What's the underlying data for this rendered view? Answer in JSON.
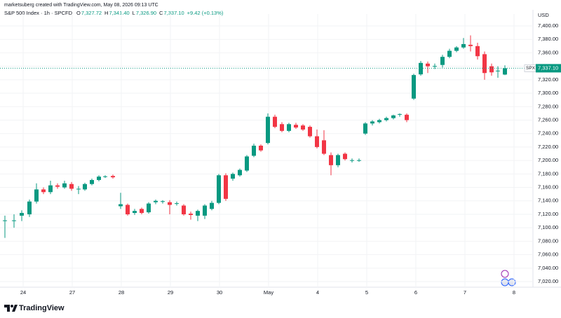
{
  "header": "marketsuberg created with TradingView.com, May 08, 2026 09:13 UTC",
  "chart_data": {
    "type": "candlestick",
    "title": "S&P 500 Index · 1h · SPCFD",
    "ohlc_legend": [
      {
        "label": "O",
        "value": "7,327.72"
      },
      {
        "label": "H",
        "value": "7,341.40"
      },
      {
        "label": "L",
        "value": "7,326.90"
      },
      {
        "label": "C",
        "value": "7,337.10"
      }
    ],
    "change": "+9.42 (+0.13%)",
    "y_unit": "USD",
    "symbol": "SPX",
    "last_price": {
      "value": 7337.1,
      "label": "7,337.10"
    },
    "up_color": "#089981",
    "down_color": "#f23645",
    "grid": true,
    "x": [
      -2.6,
      -1.3,
      -0.2,
      0.9,
      1.9,
      2.9,
      3.9,
      4.9,
      5.9,
      6.9,
      7.9,
      8.8,
      9.8,
      10.8,
      11.7,
      12.8,
      13.9,
      14.9,
      15.9,
      16.9,
      17.9,
      18.9,
      19.9,
      20.9,
      21.9,
      22.9,
      23.9,
      24.9,
      25.9,
      26.9,
      27.9,
      28.9,
      29.9,
      30.9,
      31.9,
      32.9,
      33.9,
      34.9,
      35.9,
      36.9,
      37.9,
      38.9,
      39.9,
      40.9,
      41.9,
      42.9,
      43.9,
      44.9,
      45.9,
      46.9,
      47.9,
      48.8,
      49.8,
      50.8,
      51.8,
      52.8,
      53.7,
      54.7,
      55.7,
      56.7,
      57.7,
      58.7,
      59.8,
      60.8,
      61.8,
      62.8,
      63.8,
      64.8,
      65.8,
      66.8,
      67.7,
      68.7
    ],
    "open": [
      7110,
      7110,
      7118,
      7120,
      7139,
      7157,
      7153,
      7163,
      7160,
      7165,
      7157,
      7157,
      7165,
      7171,
      7176,
      7177,
      7132,
      7134,
      7122,
      7128,
      7123,
      7138,
      7139,
      7138,
      7136,
      7133,
      7121,
      7118,
      7118,
      7128,
      7137,
      7178,
      7173,
      7178,
      7185,
      7207,
      7222,
      7226,
      7265,
      7254,
      7244,
      7253,
      7252,
      7250,
      7236,
      7230,
      7208,
      7193,
      7210,
      7200,
      7200,
      7240,
      7255,
      7257,
      7260,
      7263,
      7268,
      7268,
      7292,
      7328,
      7344,
      7340,
      7342,
      7354,
      7363,
      7368,
      7372,
      7370,
      7358,
      7340,
      7333,
      7327.72
    ],
    "high": [
      7118,
      7120,
      7126,
      7142,
      7166,
      7160,
      7170,
      7166,
      7170,
      7168,
      7162,
      7167,
      7173,
      7178,
      7178,
      7179,
      7152,
      7136,
      7128,
      7130,
      7138,
      7142,
      7141,
      7141,
      7139,
      7135,
      7124,
      7127,
      7135,
      7140,
      7180,
      7181,
      7182,
      7188,
      7208,
      7225,
      7224,
      7270,
      7268,
      7257,
      7256,
      7256,
      7254,
      7252,
      7246,
      7245,
      7212,
      7210,
      7212,
      7203,
      7203,
      7257,
      7260,
      7262,
      7265,
      7268,
      7270,
      7270,
      7329,
      7348,
      7347,
      7344,
      7357,
      7366,
      7370,
      7382,
      7386,
      7375,
      7362,
      7344,
      7340,
      7341.4
    ],
    "low": [
      7085,
      7100,
      7110,
      7116,
      7136,
      7150,
      7150,
      7158,
      7158,
      7155,
      7150,
      7155,
      7163,
      7169,
      7174,
      7173,
      7128,
      7118,
      7119,
      7120,
      7121,
      7135,
      7136,
      7120,
      7133,
      7118,
      7112,
      7110,
      7113,
      7126,
      7135,
      7140,
      7170,
      7176,
      7183,
      7205,
      7213,
      7224,
      7248,
      7242,
      7242,
      7247,
      7244,
      7234,
      7218,
      7208,
      7178,
      7190,
      7200,
      7197,
      7198,
      7238,
      7252,
      7255,
      7258,
      7261,
      7265,
      7257,
      7290,
      7326,
      7330,
      7336,
      7338,
      7352,
      7361,
      7366,
      7362,
      7350,
      7320,
      7326,
      7323,
      7326.9
    ],
    "close": [
      7111,
      7111,
      7122,
      7139,
      7157,
      7153,
      7163,
      7161,
      7166,
      7158,
      7158,
      7165,
      7171,
      7176,
      7176.5,
      7175,
      7135,
      7120,
      7125,
      7122,
      7136,
      7140,
      7139.5,
      7134,
      7136.5,
      7120,
      7119,
      7125,
      7133,
      7137,
      7178,
      7143,
      7180,
      7186,
      7206,
      7222,
      7215,
      7265,
      7250,
      7244,
      7254,
      7249,
      7246,
      7236,
      7220,
      7210,
      7193,
      7208,
      7202,
      7200.5,
      7200.5,
      7255,
      7258,
      7260,
      7263,
      7267,
      7269,
      7260,
      7327,
      7345,
      7340,
      7340.5,
      7354,
      7363,
      7368,
      7373,
      7370,
      7355,
      7330,
      7331,
      7333.5,
      7337.1
    ],
    "xlim": [
      -3.3,
      72.7
    ],
    "xticks": [
      {
        "value": 0,
        "label": "24"
      },
      {
        "value": 7,
        "label": "27"
      },
      {
        "value": 14,
        "label": "28"
      },
      {
        "value": 21,
        "label": "29"
      },
      {
        "value": 28,
        "label": "30"
      },
      {
        "value": 35,
        "label": "May"
      },
      {
        "value": 42,
        "label": "4"
      },
      {
        "value": 49,
        "label": "5"
      },
      {
        "value": 56,
        "label": "6"
      },
      {
        "value": 63,
        "label": "7"
      },
      {
        "value": 70,
        "label": "8"
      }
    ],
    "ylim": [
      7011.7,
      7417.7
    ],
    "yticks": [
      {
        "value": 7020,
        "label": "7,020.00"
      },
      {
        "value": 7040,
        "label": "7,040.00"
      },
      {
        "value": 7060,
        "label": "7,060.00"
      },
      {
        "value": 7080,
        "label": "7,080.00"
      },
      {
        "value": 7100,
        "label": "7,100.00"
      },
      {
        "value": 7120,
        "label": "7,120.00"
      },
      {
        "value": 7140,
        "label": "7,140.00"
      },
      {
        "value": 7160,
        "label": "7,160.00"
      },
      {
        "value": 7180,
        "label": "7,180.00"
      },
      {
        "value": 7200,
        "label": "7,200.00"
      },
      {
        "value": 7220,
        "label": "7,220.00"
      },
      {
        "value": 7240,
        "label": "7,240.00"
      },
      {
        "value": 7260,
        "label": "7,260.00"
      },
      {
        "value": 7280,
        "label": "7,280.00"
      },
      {
        "value": 7300,
        "label": "7,300.00"
      },
      {
        "value": 7320,
        "label": "7,320.00"
      },
      {
        "value": 7340,
        "label": "7,340.00"
      },
      {
        "value": 7360,
        "label": "7,360.00"
      },
      {
        "value": 7380,
        "label": "7,380.00"
      },
      {
        "value": 7400,
        "label": "7,400.00"
      }
    ]
  },
  "branding": "TradingView"
}
